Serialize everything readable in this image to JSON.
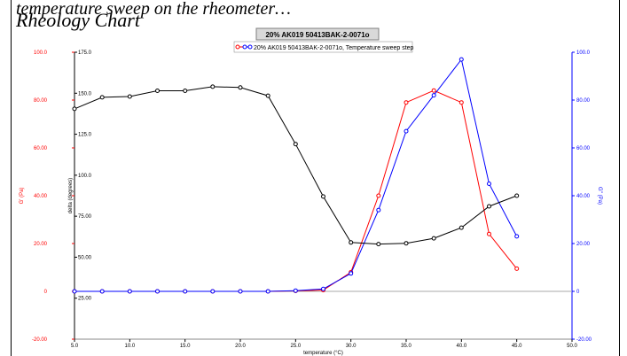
{
  "page": {
    "caption_top": "temperature sweep on the rheometer…",
    "heading": "Rheology Chart"
  },
  "chart_data": {
    "type": "line",
    "title": "20% AK019 50413BAK-2-0071o",
    "legend_label": "20% AK019 50413BAK-2-0071o, Temperature sweep step",
    "legend_placement": "top-center",
    "xlabel": "temperature (°C)",
    "xlim": [
      5.0,
      50.0
    ],
    "xticks": [
      "5.0",
      "10.0",
      "15.0",
      "20.0",
      "25.0",
      "30.0",
      "35.0",
      "40.0",
      "45.0",
      "50.0"
    ],
    "x": [
      5.0,
      7.5,
      10.0,
      12.5,
      15.0,
      17.5,
      20.0,
      22.5,
      25.0,
      27.5,
      30.0,
      32.5,
      35.0,
      37.5,
      40.0,
      42.5,
      45.0
    ],
    "axes": {
      "left_outer": {
        "label": "G' (Pa)",
        "color": "#ff0000",
        "lim": [
          -20.0,
          100.0
        ],
        "ticks": [
          "-20.00",
          "0",
          "20.00",
          "40.00",
          "60.00",
          "80.00",
          "100.0"
        ]
      },
      "left_inner": {
        "label": "delta (degrees)",
        "color": "#000000",
        "lim": [
          0.0,
          175.0
        ],
        "ticks": [
          "25.00",
          "50.00",
          "75.00",
          "100.0",
          "125.0",
          "150.0",
          "175.0"
        ]
      },
      "right": {
        "label": "G'' (Pa)",
        "color": "#0000ff",
        "lim": [
          -20.0,
          100.0
        ],
        "ticks": [
          "-20.00",
          "0",
          "20.00",
          "40.00",
          "60.00",
          "80.00",
          "100.0"
        ]
      }
    },
    "series": [
      {
        "name": "G'",
        "axis": "left_outer",
        "color": "#ff0000",
        "values": [
          0.0,
          0.0,
          0.0,
          0.0,
          0.0,
          0.0,
          0.0,
          0.0,
          0.2,
          0.5,
          8.0,
          40.0,
          79.0,
          84.0,
          79.0,
          24.0,
          9.5
        ]
      },
      {
        "name": "G''",
        "axis": "right",
        "color": "#0000ff",
        "values": [
          0.0,
          0.0,
          0.0,
          0.0,
          0.0,
          0.0,
          0.0,
          0.0,
          0.3,
          1.0,
          7.5,
          34.0,
          67.0,
          82.0,
          97.0,
          45.0,
          23.0
        ]
      },
      {
        "name": "delta",
        "axis": "left_inner",
        "color": "#000000",
        "values": [
          140.5,
          147.5,
          148.0,
          151.5,
          151.5,
          154.0,
          153.5,
          148.5,
          119.0,
          87.0,
          59.0,
          58.0,
          58.5,
          61.5,
          68.0,
          81.0,
          87.5
        ]
      }
    ],
    "grid": false
  }
}
